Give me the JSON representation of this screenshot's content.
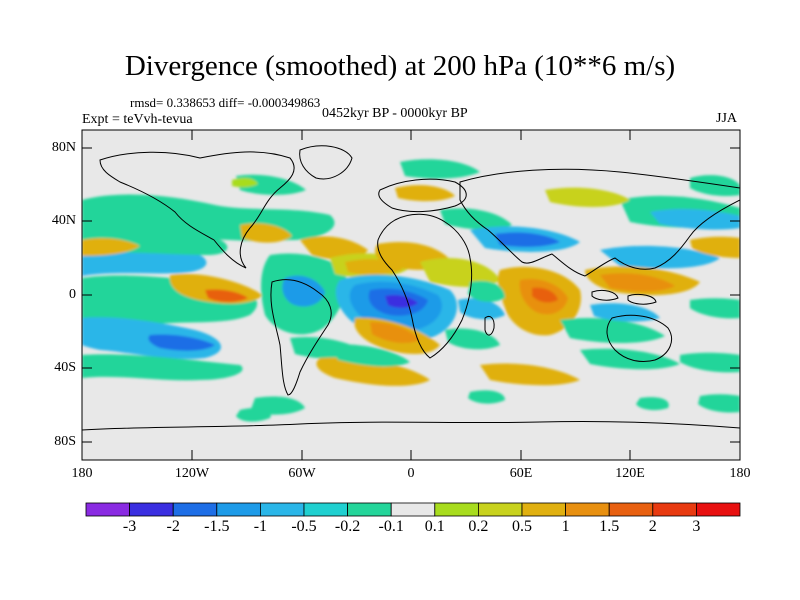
{
  "title": "Divergence (smoothed) at 200 hPa (10**6 m/s)",
  "stats": "rmsd= 0.338653 diff= -0.000349863",
  "experiment": "Expt = teVvh-tevua",
  "period": "0452kyr BP - 0000kyr BP",
  "season": "JJA",
  "map_data": {
    "variable": "Divergence (smoothed)",
    "level": "200 hPa",
    "projection": "cylindrical equidistant",
    "lon_range": [
      -180,
      180
    ],
    "lat_range": [
      -90,
      90
    ],
    "y_ticks": [
      "80N",
      "40N",
      "0",
      "40S",
      "80S"
    ],
    "x_ticks": [
      "180",
      "120W",
      "60W",
      "0",
      "60E",
      "120E",
      "180"
    ],
    "colorbar": {
      "labels": [
        "-3",
        "-2",
        "-1.5",
        "-1",
        "-0.5",
        "-0.2",
        "-0.1",
        "0.1",
        "0.2",
        "0.5",
        "1",
        "1.5",
        "2",
        "3"
      ],
      "colors": [
        "#8a2be2",
        "#3a2ee0",
        "#1e6ee6",
        "#1e9be8",
        "#2ab6e8",
        "#20d0d0",
        "#24d59a",
        "#e8e8e8",
        "#a8dc1e",
        "#c8d21e",
        "#e0b010",
        "#e89010",
        "#e86010",
        "#e83a10",
        "#e81010"
      ]
    }
  }
}
